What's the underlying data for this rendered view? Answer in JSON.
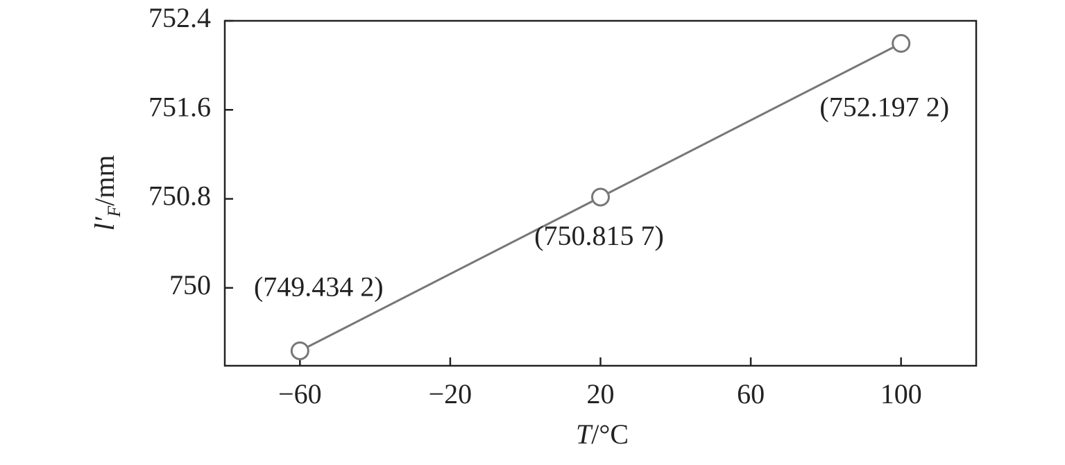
{
  "chart_data": {
    "type": "line",
    "x_label": {
      "symbol": "T",
      "unit": "/°C"
    },
    "y_label": {
      "symbol": "l′",
      "subscript": "F",
      "unit": "/mm"
    },
    "x": [
      -60,
      20,
      100
    ],
    "series": [
      {
        "color": "#777777",
        "values": [
          749.4342,
          750.8157,
          752.1972
        ],
        "value_labels": [
          "(749.434 2)",
          "(750.815 7)",
          "(752.197 2)"
        ]
      }
    ],
    "xlim": [
      -80,
      120
    ],
    "xticks": [
      {
        "value": -60,
        "label": "−60"
      },
      {
        "value": -20,
        "label": "−20"
      },
      20,
      60,
      100
    ],
    "ylim": [
      749.3,
      752.4
    ],
    "yticks": [
      750,
      750.8,
      751.6,
      752.4
    ],
    "markers": "open-circle"
  }
}
